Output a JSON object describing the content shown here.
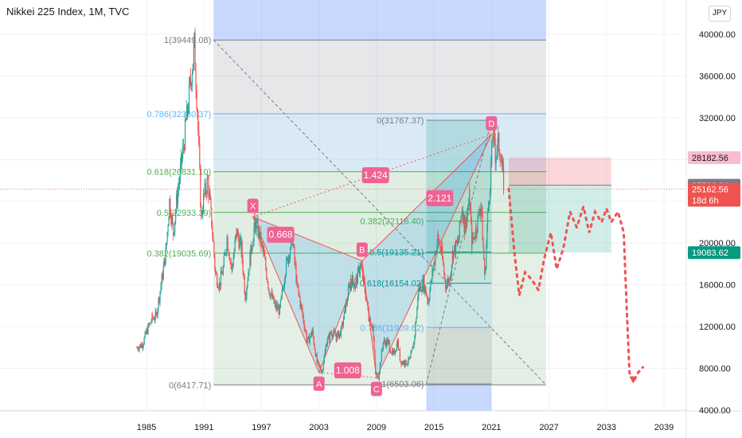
{
  "header": {
    "title": "Nikkei 225 Index, 1M, TVC",
    "currency": "JPY"
  },
  "colors": {
    "up": "#26a69a",
    "down": "#ef5350",
    "pattern": "#e91e63",
    "fib_gray": "#787b86",
    "fib_blue": "#64b5f6",
    "fib_green": "#4caf50",
    "target_green": "#089981"
  },
  "chart_data": {
    "type": "candlestick",
    "symbol": "Nikkei 225 Index, 1M, TVC",
    "y_axis": {
      "min": 4000,
      "max": 42000,
      "ticks": [
        "40000.00",
        "36000.00",
        "32000.00",
        "28000.00",
        "24000.00",
        "20000.00",
        "16000.00",
        "12000.00",
        "8000.00",
        "4000.00"
      ],
      "tick_values": [
        40000,
        36000,
        32000,
        28000,
        24000,
        20000,
        16000,
        12000,
        8000,
        4000
      ]
    },
    "x_axis": {
      "min": 1980.5,
      "max": 2042,
      "ticks": [
        "1985",
        "1991",
        "1997",
        "2003",
        "2009",
        "2015",
        "2021",
        "2027",
        "2033",
        "2039"
      ],
      "tick_values": [
        1985,
        1991,
        1997,
        2003,
        2009,
        2015,
        2021,
        2027,
        2033,
        2039
      ]
    },
    "price_path": [
      [
        1984.0,
        10000
      ],
      [
        1984.6,
        10300
      ],
      [
        1985.0,
        11500
      ],
      [
        1985.6,
        12800
      ],
      [
        1986.0,
        13000
      ],
      [
        1986.6,
        16500
      ],
      [
        1987.0,
        19000
      ],
      [
        1987.4,
        24000
      ],
      [
        1987.8,
        21000
      ],
      [
        1988.2,
        24500
      ],
      [
        1988.7,
        28000
      ],
      [
        1989.2,
        32000
      ],
      [
        1989.6,
        35500
      ],
      [
        1989.99,
        38900
      ],
      [
        1990.3,
        33000
      ],
      [
        1990.7,
        22500
      ],
      [
        1991.0,
        24500
      ],
      [
        1991.4,
        26000
      ],
      [
        1991.8,
        22000
      ],
      [
        1992.2,
        17000
      ],
      [
        1992.6,
        16000
      ],
      [
        1993.0,
        17500
      ],
      [
        1993.4,
        20500
      ],
      [
        1993.9,
        17500
      ],
      [
        1994.4,
        21000
      ],
      [
        1994.9,
        19500
      ],
      [
        1995.3,
        15000
      ],
      [
        1995.8,
        18500
      ],
      [
        1996.3,
        22000
      ],
      [
        1996.7,
        21000
      ],
      [
        1997.2,
        19000
      ],
      [
        1997.8,
        15500
      ],
      [
        1998.4,
        14000
      ],
      [
        1998.9,
        13500
      ],
      [
        1999.5,
        17500
      ],
      [
        2000.2,
        20500
      ],
      [
        2000.7,
        16000
      ],
      [
        2001.3,
        13000
      ],
      [
        2001.8,
        10500
      ],
      [
        2002.3,
        11500
      ],
      [
        2002.8,
        8500
      ],
      [
        2003.3,
        7700
      ],
      [
        2003.8,
        10500
      ],
      [
        2004.3,
        11500
      ],
      [
        2004.8,
        11000
      ],
      [
        2005.3,
        11500
      ],
      [
        2005.8,
        14000
      ],
      [
        2006.3,
        16500
      ],
      [
        2006.8,
        16000
      ],
      [
        2007.3,
        17800
      ],
      [
        2007.7,
        16000
      ],
      [
        2008.2,
        13000
      ],
      [
        2008.6,
        12000
      ],
      [
        2008.9,
        7500
      ],
      [
        2009.2,
        7200
      ],
      [
        2009.7,
        10500
      ],
      [
        2010.2,
        10500
      ],
      [
        2010.7,
        9200
      ],
      [
        2011.2,
        10500
      ],
      [
        2011.5,
        8700
      ],
      [
        2012.0,
        8500
      ],
      [
        2012.5,
        8800
      ],
      [
        2012.9,
        10500
      ],
      [
        2013.4,
        15500
      ],
      [
        2013.9,
        16200
      ],
      [
        2014.4,
        14500
      ],
      [
        2014.9,
        17500
      ],
      [
        2015.4,
        20500
      ],
      [
        2015.8,
        19000
      ],
      [
        2016.2,
        16000
      ],
      [
        2016.6,
        16500
      ],
      [
        2016.95,
        19000
      ],
      [
        2017.5,
        20000
      ],
      [
        2017.95,
        23500
      ],
      [
        2018.2,
        21500
      ],
      [
        2018.7,
        24200
      ],
      [
        2018.95,
        20000
      ],
      [
        2019.4,
        21500
      ],
      [
        2019.9,
        23700
      ],
      [
        2020.2,
        18500
      ],
      [
        2020.3,
        16700
      ],
      [
        2020.6,
        22500
      ],
      [
        2020.95,
        27400
      ],
      [
        2021.15,
        30400
      ],
      [
        2021.4,
        28500
      ],
      [
        2021.7,
        29500
      ],
      [
        2021.9,
        28800
      ],
      [
        2022.1,
        27000
      ],
      [
        2022.3,
        25500
      ]
    ],
    "horizontal_range_gray": {
      "y": [
        6417.71,
        39449.08
      ],
      "x": [
        1992.0,
        2026.7
      ]
    },
    "fib_retracement_1": {
      "levels": [
        {
          "label": "1(39449.08)",
          "value": 39449.08,
          "color": "#787b86"
        },
        {
          "label": "0.786(32380.37)",
          "value": 32380.37,
          "color": "#64b5f6"
        },
        {
          "label": "0.618(26831.10)",
          "value": 26831.1,
          "color": "#4caf50"
        },
        {
          "label": "0.5(22933.39)",
          "value": 22933.39,
          "color": "#4caf50"
        },
        {
          "label": "0.382(19035.69)",
          "value": 19035.69,
          "color": "#4caf50"
        },
        {
          "label": "0(6417.71)",
          "value": 6417.71,
          "color": "#787b86"
        }
      ]
    },
    "fib_retracement_2": {
      "levels": [
        {
          "label": "0(31767.37)",
          "value": 31767.37
        },
        {
          "label": "0.382(22116.40)",
          "value": 22116.4
        },
        {
          "label": "0.5(19135.21)",
          "value": 19135.21
        },
        {
          "label": "0.618(16154.02)",
          "value": 16154.02
        },
        {
          "label": "0.786(11909.62)",
          "value": 11909.62
        },
        {
          "label": "1(6503.06)",
          "value": 6503.06
        }
      ]
    },
    "harmonic_points": [
      {
        "name": "X",
        "x": 1996.1,
        "y": 22500
      },
      {
        "name": "A",
        "x": 2003.0,
        "y": 7600
      },
      {
        "name": "B",
        "x": 2007.5,
        "y": 18300
      },
      {
        "name": "C",
        "x": 2009.0,
        "y": 7100
      },
      {
        "name": "D",
        "x": 2021.0,
        "y": 30400
      }
    ],
    "ratio_labels": [
      {
        "text": "1.424",
        "x": 2008.9,
        "y": 26500
      },
      {
        "text": "0.668",
        "x": 1999.0,
        "y": 20800
      },
      {
        "text": "2.121",
        "x": 2015.6,
        "y": 24300
      },
      {
        "text": "1.008",
        "x": 2006.0,
        "y": 7800
      }
    ],
    "position_tool": {
      "entry": 25536.64,
      "stop": 28182.56,
      "target": 19083.62,
      "x": [
        2022.8,
        2033.5
      ]
    },
    "price_labels": [
      {
        "text": "28182.56",
        "value": 28182.56,
        "bg": "#f8bbd0",
        "fg": "#131722"
      },
      {
        "text": "25536.64",
        "value": 25536.64,
        "bg": "#787b86",
        "fg": "#ffffff"
      },
      {
        "text": "25162.56",
        "value": 25162.56,
        "bg": "#ef5350",
        "fg": "#ffffff",
        "sub": "18d 6h"
      },
      {
        "text": "19083.62",
        "value": 19083.62,
        "bg": "#089981",
        "fg": "#ffffff"
      }
    ],
    "current_price": 25162.56,
    "countdown": "18d 6h",
    "projection_path": [
      [
        2022.8,
        25200
      ],
      [
        2023.4,
        19000
      ],
      [
        2023.9,
        15000
      ],
      [
        2024.5,
        17200
      ],
      [
        2025.2,
        16500
      ],
      [
        2025.9,
        15500
      ],
      [
        2026.5,
        18500
      ],
      [
        2027.2,
        21000
      ],
      [
        2027.8,
        17500
      ],
      [
        2028.5,
        19500
      ],
      [
        2029.2,
        23000
      ],
      [
        2029.9,
        21500
      ],
      [
        2030.6,
        23500
      ],
      [
        2031.2,
        21000
      ],
      [
        2031.8,
        23000
      ],
      [
        2032.5,
        22000
      ],
      [
        2033.0,
        23300
      ],
      [
        2033.5,
        22000
      ],
      [
        2034.2,
        23000
      ],
      [
        2034.8,
        21000
      ],
      [
        2035.1,
        14000
      ],
      [
        2035.4,
        7600
      ],
      [
        2035.8,
        6700
      ],
      [
        2036.3,
        7600
      ],
      [
        2036.8,
        8100
      ]
    ]
  }
}
